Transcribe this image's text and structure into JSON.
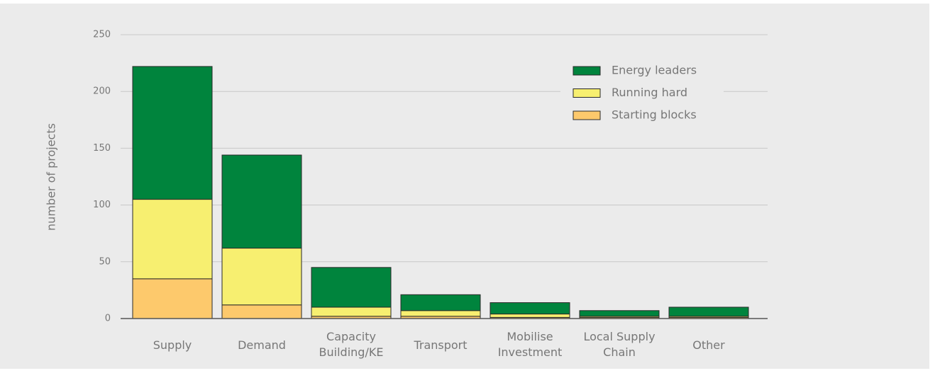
{
  "chart_data": {
    "type": "stacked_bar",
    "y_label": "number of projects",
    "categories": [
      [
        "Supply"
      ],
      [
        "Demand"
      ],
      [
        "Capacity",
        "Building/KE"
      ],
      [
        "Transport"
      ],
      [
        "Mobilise",
        "Investment"
      ],
      [
        "Local Supply",
        "Chain"
      ],
      [
        "Other"
      ]
    ],
    "series": [
      {
        "name": "Starting blocks",
        "color": "#fdc96c",
        "values": [
          35,
          12,
          2,
          2,
          1,
          1,
          1
        ]
      },
      {
        "name": "Running hard",
        "color": "#f7ef70",
        "values": [
          70,
          50,
          8,
          5,
          3,
          1,
          1
        ]
      },
      {
        "name": "Energy leaders",
        "color": "#00843d",
        "values": [
          117,
          82,
          35,
          14,
          10,
          5,
          8
        ]
      }
    ],
    "ylim": [
      0,
      250
    ],
    "yticks": [
      0,
      50,
      100,
      150,
      200,
      250
    ],
    "grid": true,
    "legend": "top-right"
  }
}
